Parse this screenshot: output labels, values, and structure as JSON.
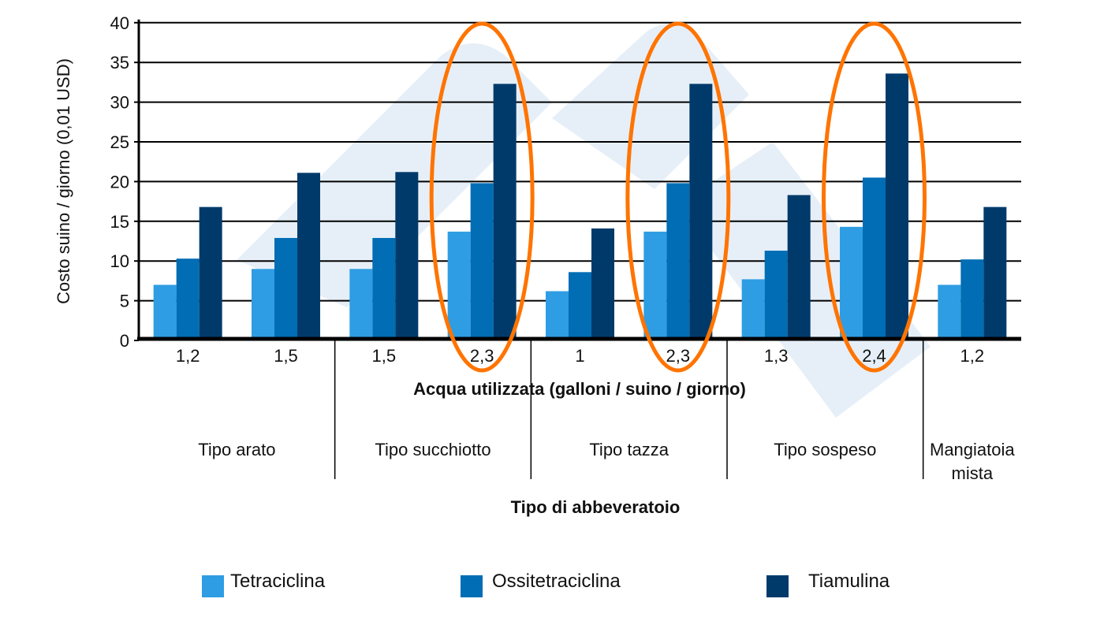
{
  "chart_data": {
    "type": "bar",
    "xlabel": "Acqua utilizzata (galloni / suino / giorno)",
    "ylabel": "Costo suino / giorno (0,01 USD)",
    "group_axis_label": "Tipo di abbeveratoio",
    "ylim": [
      0,
      40
    ],
    "yticks": [
      "0",
      "5",
      "10",
      "15",
      "20",
      "25",
      "30",
      "35",
      "40"
    ],
    "grid": true,
    "legend_placement": "bottom",
    "categories": [
      "1,2",
      "1,5",
      "1,5",
      "2,3",
      "1",
      "2,3",
      "1,3",
      "2,4",
      "1,2"
    ],
    "groups": [
      {
        "label": "Tipo arato",
        "span": [
          0,
          1
        ]
      },
      {
        "label": "Tipo succhiotto",
        "span": [
          2,
          3
        ]
      },
      {
        "label": "Tipo tazza",
        "span": [
          4,
          5
        ]
      },
      {
        "label": "Tipo sospeso",
        "span": [
          6,
          7
        ]
      },
      {
        "label": "Mangiatoia mista",
        "span": [
          8,
          8
        ]
      }
    ],
    "series": [
      {
        "name": "Tetraciclina",
        "color": "#2e9de3",
        "values": [
          7,
          9,
          9,
          13.7,
          6.2,
          13.7,
          7.7,
          14.3,
          7
        ]
      },
      {
        "name": "Ossitetraciclina",
        "color": "#006db5",
        "values": [
          10.3,
          12.9,
          12.9,
          19.8,
          8.6,
          19.8,
          11.3,
          20.5,
          10.2
        ]
      },
      {
        "name": "Tiamulina",
        "color": "#003a6b",
        "values": [
          16.8,
          21.1,
          21.2,
          32.3,
          14.1,
          32.3,
          18.3,
          33.6,
          16.8
        ]
      }
    ],
    "highlighted_categories": [
      3,
      5,
      7
    ],
    "highlight_color": "#ff7400"
  }
}
